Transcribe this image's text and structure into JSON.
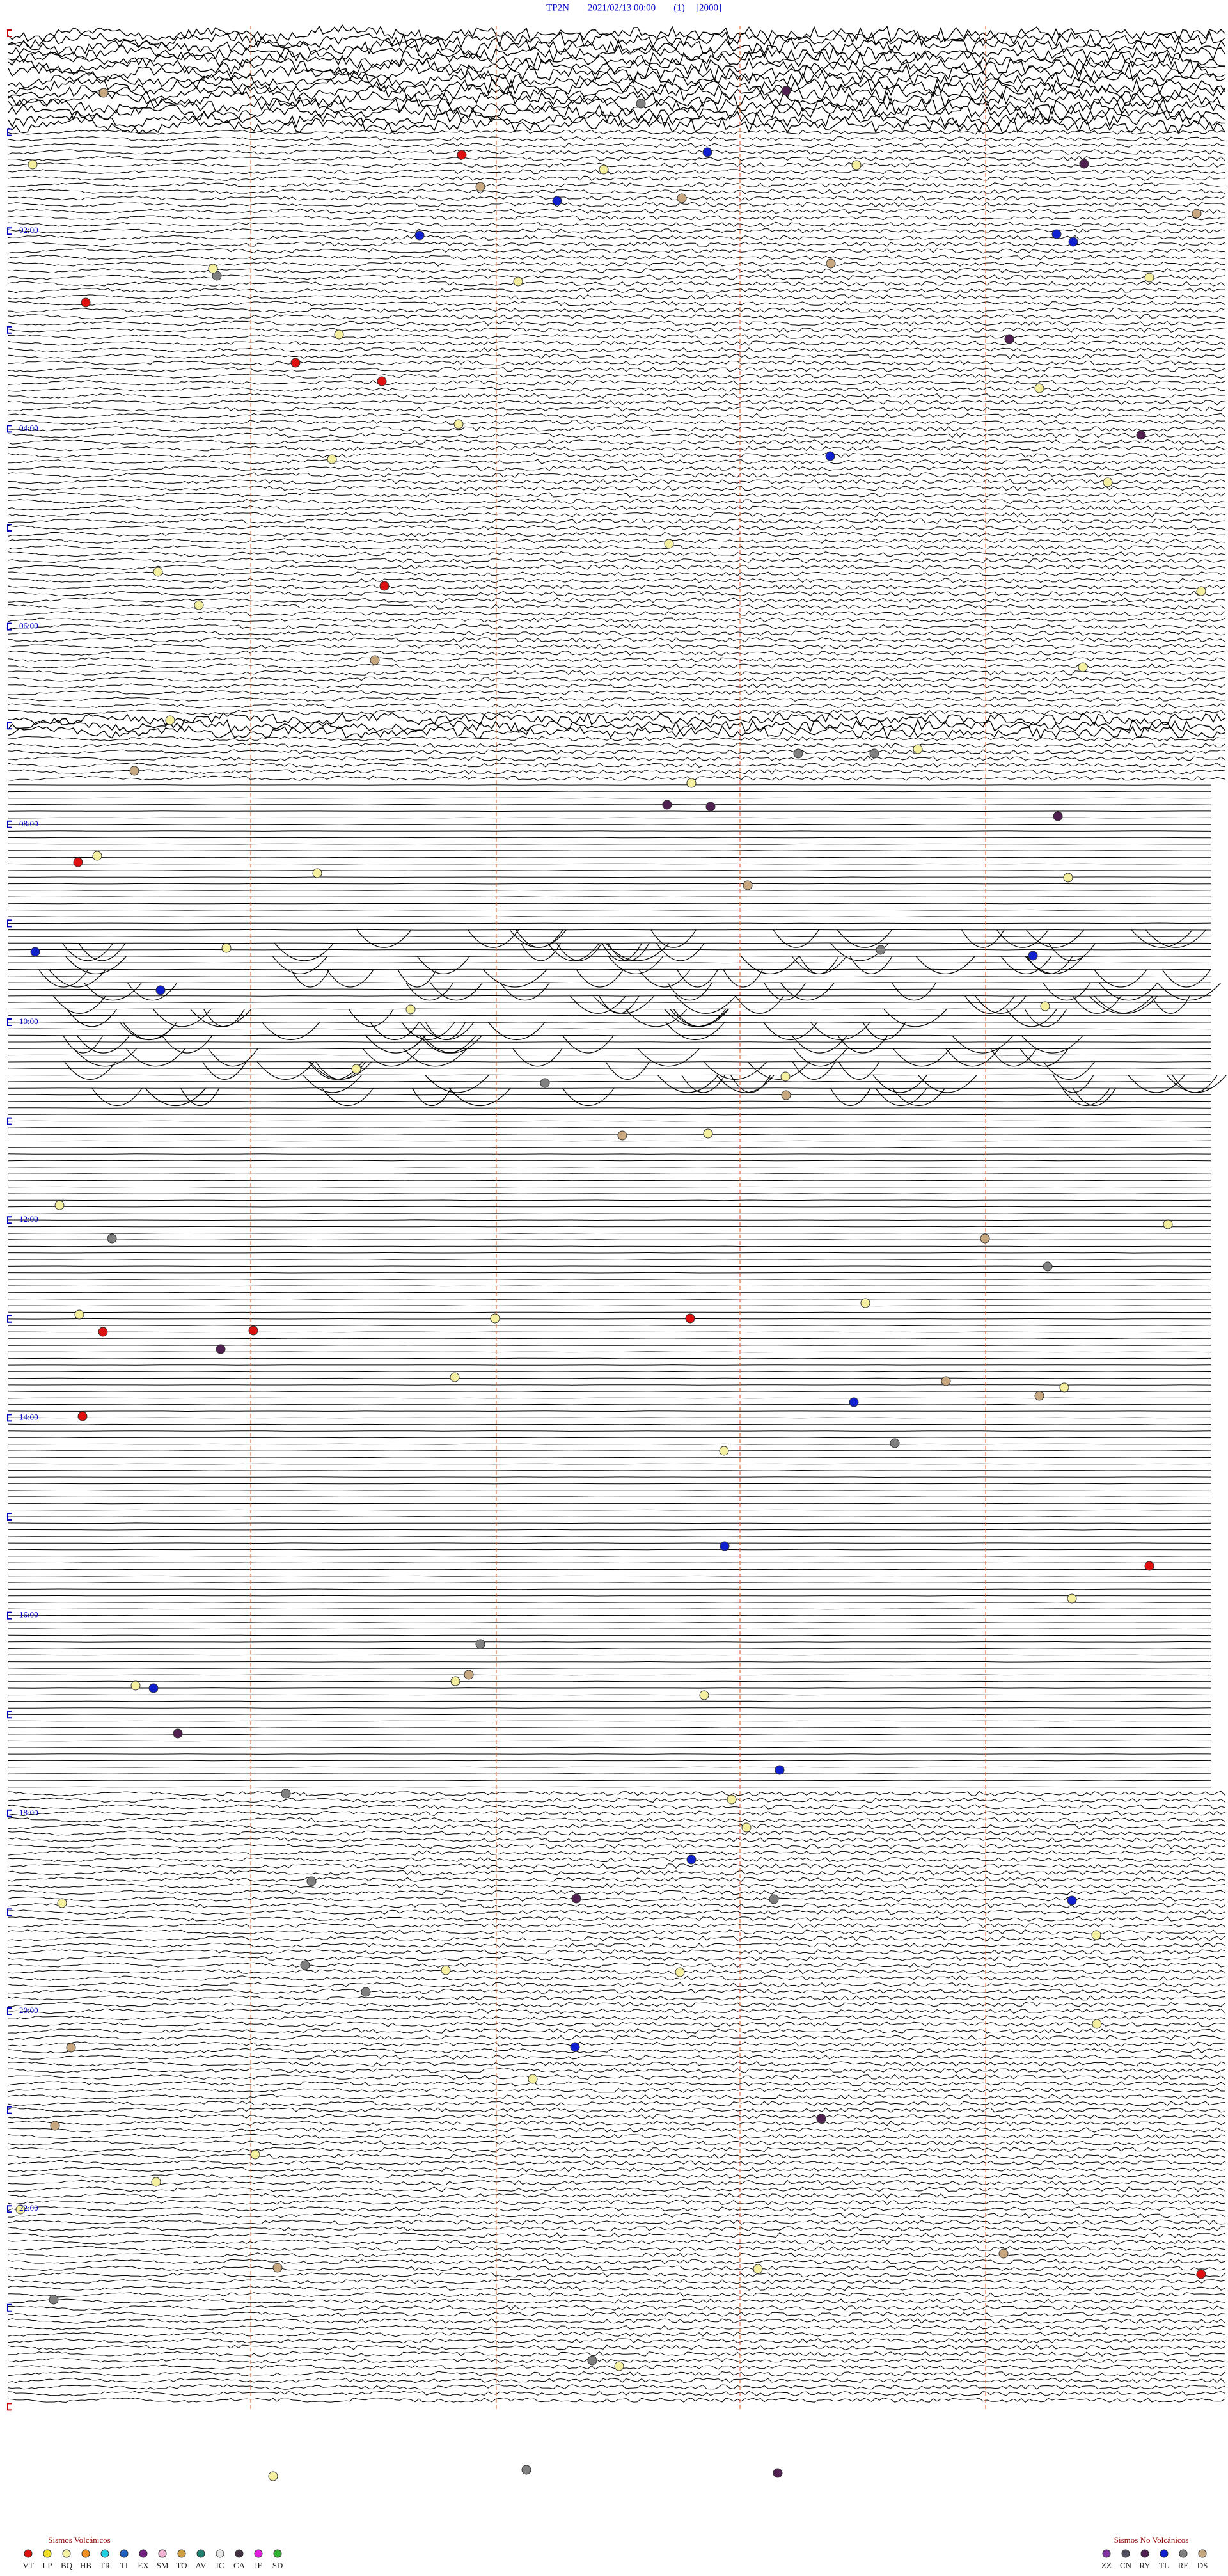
{
  "header": {
    "station": "TP2N",
    "datetime": "2021/02/13 00:00",
    "page": "(1)",
    "scale": "[2000]"
  },
  "hour_labels": [
    "02:00",
    "04:00",
    "06:00",
    "08:00",
    "10:00",
    "12:00",
    "14:00",
    "16:00",
    "18:00",
    "20:00",
    "22:00"
  ],
  "legend": {
    "volcanic": {
      "title": "Sismos Volcánicos",
      "items": [
        {
          "label": "VT",
          "color": "#e01010"
        },
        {
          "label": "LP",
          "color": "#f0e020"
        },
        {
          "label": "BQ",
          "color": "#f4f0a0"
        },
        {
          "label": "HB",
          "color": "#f09020"
        },
        {
          "label": "TR",
          "color": "#20d0e0"
        },
        {
          "label": "TI",
          "color": "#2060c0"
        },
        {
          "label": "EX",
          "color": "#702080"
        },
        {
          "label": "SM",
          "color": "#f0b0d0"
        },
        {
          "label": "TO",
          "color": "#d0a040"
        },
        {
          "label": "AV",
          "color": "#208070"
        },
        {
          "label": "IC",
          "color": "#e8e8e8"
        },
        {
          "label": "CA",
          "color": "#403040"
        },
        {
          "label": "IF",
          "color": "#e020e0"
        },
        {
          "label": "SD",
          "color": "#30b030"
        }
      ]
    },
    "non_volcanic": {
      "title": "Sismos No Volcánicos",
      "items": [
        {
          "label": "ZZ",
          "color": "#8030a0"
        },
        {
          "label": "CN",
          "color": "#505060"
        },
        {
          "label": "RY",
          "color": "#502050"
        },
        {
          "label": "TL",
          "color": "#1020d0"
        },
        {
          "label": "RE",
          "color": "#808080"
        },
        {
          "label": "DS",
          "color": "#c8a880"
        }
      ]
    }
  }
}
